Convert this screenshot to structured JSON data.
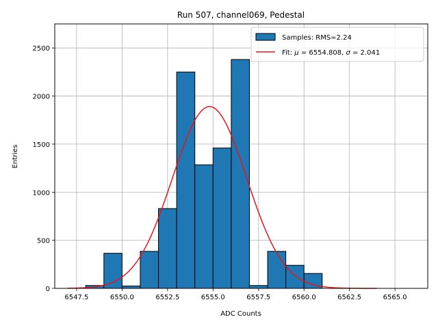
{
  "chart_data": {
    "type": "bar",
    "title": "Run 507, channel069, Pedestal",
    "xlabel": "ADC Counts",
    "ylabel": "Entries",
    "xlim": [
      6546.3,
      6566.8
    ],
    "ylim": [
      0,
      2750
    ],
    "xticks": [
      6547.5,
      6550.0,
      6552.5,
      6555.0,
      6557.5,
      6560.0,
      6562.5,
      6565.0
    ],
    "xtick_labels": [
      "6547.5",
      "6550.0",
      "6552.5",
      "6555.0",
      "6557.5",
      "6560.0",
      "6562.5",
      "6565.0"
    ],
    "yticks": [
      0,
      500,
      1000,
      1500,
      2000,
      2500
    ],
    "ytick_labels": [
      "0",
      "500",
      "1000",
      "1500",
      "2000",
      "2500"
    ],
    "grid": true,
    "bins": [
      {
        "left": 6548,
        "right": 6549,
        "count": 30
      },
      {
        "left": 6549,
        "right": 6550,
        "count": 365
      },
      {
        "left": 6550,
        "right": 6551,
        "count": 25
      },
      {
        "left": 6551,
        "right": 6552,
        "count": 385
      },
      {
        "left": 6552,
        "right": 6553,
        "count": 830
      },
      {
        "left": 6553,
        "right": 6554,
        "count": 2250
      },
      {
        "left": 6554,
        "right": 6555,
        "count": 1285
      },
      {
        "left": 6555,
        "right": 6556,
        "count": 1460
      },
      {
        "left": 6556,
        "right": 6557,
        "count": 2380
      },
      {
        "left": 6557,
        "right": 6558,
        "count": 30
      },
      {
        "left": 6558,
        "right": 6559,
        "count": 385
      },
      {
        "left": 6559,
        "right": 6560,
        "count": 240
      },
      {
        "left": 6560,
        "right": 6561,
        "count": 155
      }
    ],
    "fit": {
      "type": "gaussian",
      "mu": 6554.808,
      "sigma": 2.041,
      "amplitude": 1890,
      "x_range": [
        6547,
        6564
      ]
    },
    "bar_color": "#1f77b4",
    "fit_color": "#e8141b",
    "legend": {
      "position": "top-right",
      "entries": [
        {
          "label": "Samples: RMS=2.24",
          "kind": "patch"
        },
        {
          "label_prefix": "Fit: ",
          "mu_symbol": "μ",
          "mu_text": " = 6554.808, ",
          "sigma_symbol": "σ",
          "sigma_text": " = 2.041",
          "kind": "line"
        }
      ]
    }
  }
}
